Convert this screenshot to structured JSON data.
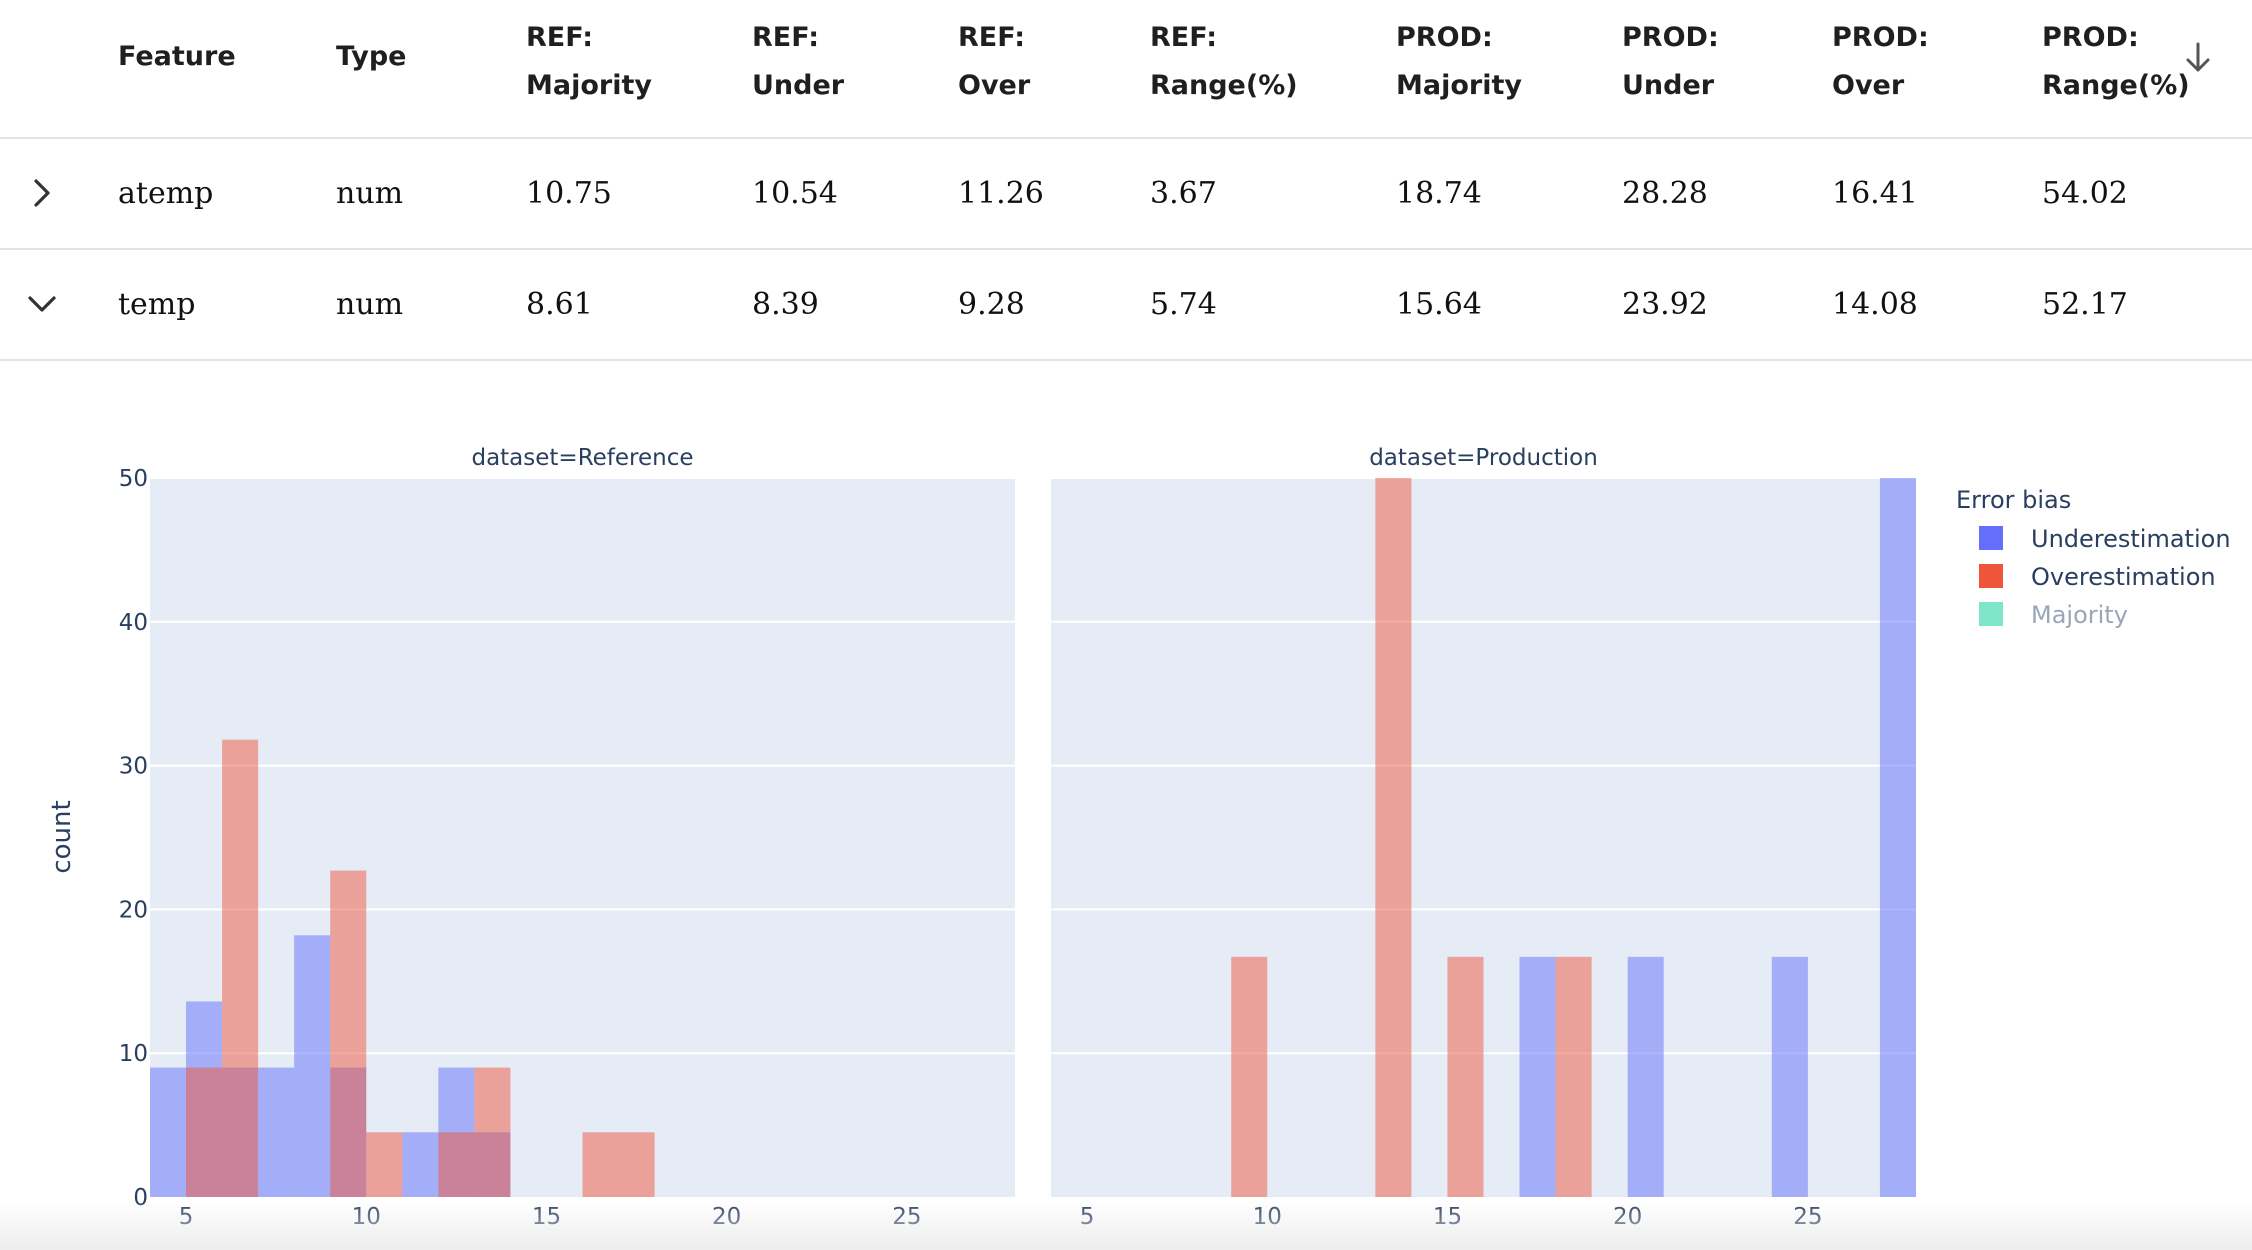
{
  "table": {
    "columns": [
      {
        "key": "feature",
        "lines": [
          "Feature"
        ]
      },
      {
        "key": "type",
        "lines": [
          "Type"
        ]
      },
      {
        "key": "ref_majority",
        "lines": [
          "REF:",
          "Majority"
        ]
      },
      {
        "key": "ref_under",
        "lines": [
          "REF:",
          "Under"
        ]
      },
      {
        "key": "ref_over",
        "lines": [
          "REF:",
          "Over"
        ]
      },
      {
        "key": "ref_range",
        "lines": [
          "REF:",
          "Range(%)"
        ]
      },
      {
        "key": "prod_majority",
        "lines": [
          "PROD:",
          "Majority"
        ]
      },
      {
        "key": "prod_under",
        "lines": [
          "PROD:",
          "Under"
        ]
      },
      {
        "key": "prod_over",
        "lines": [
          "PROD:",
          "Over"
        ]
      },
      {
        "key": "prod_range",
        "lines": [
          "PROD:",
          "Range(%)"
        ]
      }
    ],
    "sort_icon": "arrow-down-icon",
    "rows": [
      {
        "expanded": false,
        "icon": "chevron-right-icon",
        "cells": [
          "atemp",
          "num",
          "10.75",
          "10.54",
          "11.26",
          "3.67",
          "18.74",
          "28.28",
          "16.41",
          "54.02"
        ]
      },
      {
        "expanded": true,
        "icon": "chevron-down-icon",
        "cells": [
          "temp",
          "num",
          "8.61",
          "8.39",
          "9.28",
          "5.74",
          "15.64",
          "23.92",
          "14.08",
          "52.17"
        ]
      }
    ]
  },
  "chart_data": {
    "type": "bar",
    "panels": [
      {
        "title": "dataset=Reference",
        "bars": [
          {
            "series": "Underestimation",
            "x0": 4,
            "x1": 5,
            "count": 9
          },
          {
            "series": "Underestimation",
            "x0": 5,
            "x1": 6,
            "count": 13.6
          },
          {
            "series": "Underestimation",
            "x0": 6,
            "x1": 7,
            "count": 9
          },
          {
            "series": "Underestimation",
            "x0": 7,
            "x1": 8,
            "count": 9
          },
          {
            "series": "Underestimation",
            "x0": 8,
            "x1": 9,
            "count": 18.2
          },
          {
            "series": "Underestimation",
            "x0": 9,
            "x1": 10,
            "count": 9
          },
          {
            "series": "Underestimation",
            "x0": 11,
            "x1": 12,
            "count": 4.5
          },
          {
            "series": "Underestimation",
            "x0": 12,
            "x1": 13,
            "count": 9
          },
          {
            "series": "Underestimation",
            "x0": 13,
            "x1": 14,
            "count": 4.5
          },
          {
            "series": "Overestimation",
            "x0": 5,
            "x1": 6,
            "count": 9
          },
          {
            "series": "Overestimation",
            "x0": 6,
            "x1": 7,
            "count": 31.8
          },
          {
            "series": "Overestimation",
            "x0": 9,
            "x1": 10,
            "count": 22.7
          },
          {
            "series": "Overestimation",
            "x0": 10,
            "x1": 11,
            "count": 4.5
          },
          {
            "series": "Overestimation",
            "x0": 12,
            "x1": 13,
            "count": 4.5
          },
          {
            "series": "Overestimation",
            "x0": 13,
            "x1": 14,
            "count": 9
          },
          {
            "series": "Overestimation",
            "x0": 16,
            "x1": 17,
            "count": 4.5
          },
          {
            "series": "Overestimation",
            "x0": 17,
            "x1": 18,
            "count": 4.5
          }
        ]
      },
      {
        "title": "dataset=Production",
        "bars": [
          {
            "series": "Overestimation",
            "x0": 9,
            "x1": 10,
            "count": 16.7
          },
          {
            "series": "Overestimation",
            "x0": 13,
            "x1": 14,
            "count": 50
          },
          {
            "series": "Overestimation",
            "x0": 15,
            "x1": 16,
            "count": 16.7
          },
          {
            "series": "Underestimation",
            "x0": 17,
            "x1": 18,
            "count": 16.7
          },
          {
            "series": "Overestimation",
            "x0": 18,
            "x1": 19,
            "count": 16.7
          },
          {
            "series": "Underestimation",
            "x0": 20,
            "x1": 21,
            "count": 16.7
          },
          {
            "series": "Underestimation",
            "x0": 24,
            "x1": 25,
            "count": 16.7
          },
          {
            "series": "Underestimation",
            "x0": 27,
            "x1": 28,
            "count": 50
          }
        ]
      }
    ],
    "x_ticks": [
      5,
      10,
      15,
      20,
      25
    ],
    "xlim": [
      4,
      28
    ],
    "y_ticks": [
      0,
      10,
      20,
      30,
      40,
      50
    ],
    "ylim": [
      0,
      50
    ],
    "ylabel": "count",
    "xlabel": "",
    "grid": true,
    "legend": {
      "title": "Error bias",
      "placement": "right",
      "items": [
        {
          "name": "Underestimation",
          "color": "#636efa",
          "active": true
        },
        {
          "name": "Overestimation",
          "color": "#ef553b",
          "active": true
        },
        {
          "name": "Majority",
          "color": "#00cc96",
          "active": false
        }
      ]
    },
    "colors": {
      "plot_bg": "#e5ecf6",
      "Underestimation": "#636efa",
      "Overestimation": "#ef553b",
      "bar_opacity": 0.5
    }
  }
}
